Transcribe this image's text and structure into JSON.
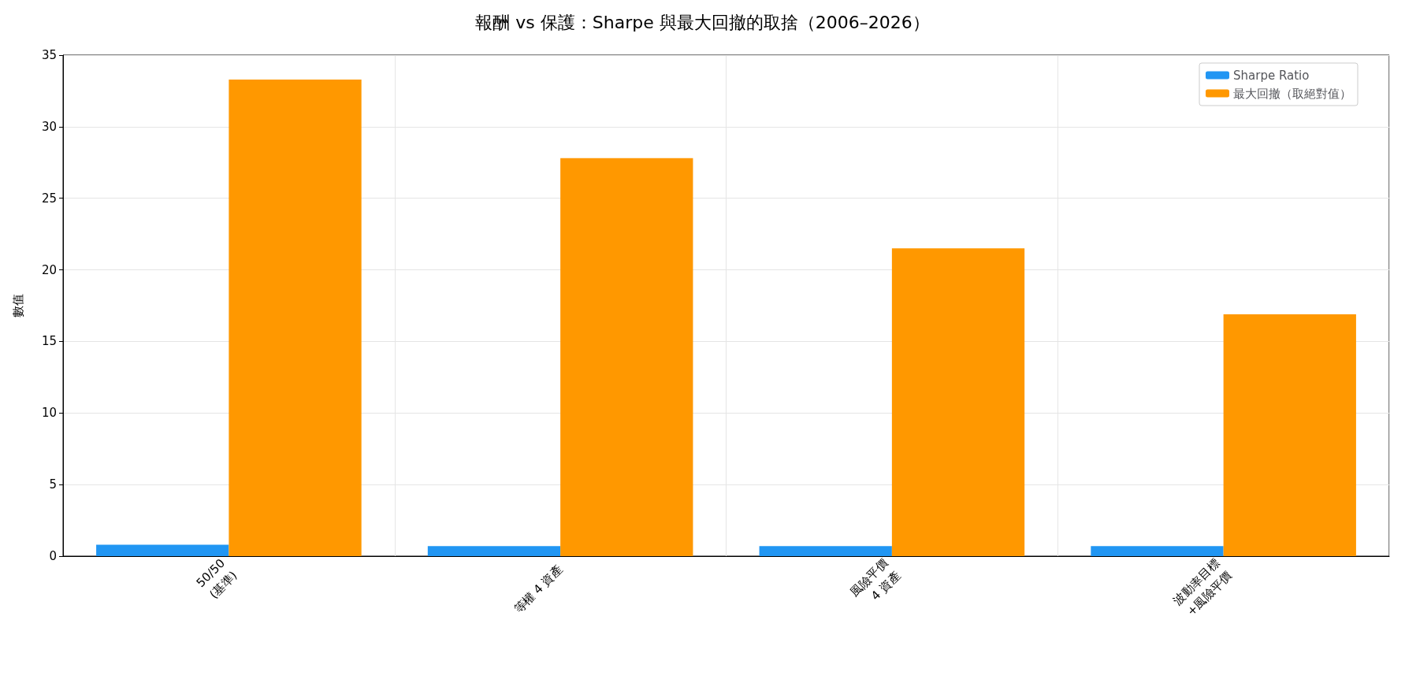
{
  "chart_data": {
    "type": "bar",
    "title": "報酬 vs 保護：Sharpe 與最大回撤的取捨（2006–2026）",
    "ylabel": "數值",
    "categories": [
      "50/50\n(基準)",
      "等權 4 資產",
      "風險平價\n4 資產",
      "波動率目標\n+風險平價"
    ],
    "series": [
      {
        "name": "Sharpe Ratio",
        "color": "#2196f3",
        "values": [
          0.8,
          0.7,
          0.7,
          0.7
        ]
      },
      {
        "name": "最大回撤（取絕對值）",
        "color": "#ff9800",
        "values": [
          33.3,
          27.8,
          21.5,
          16.9
        ]
      }
    ],
    "ylim": [
      0,
      35
    ],
    "yticks": [
      0,
      5,
      10,
      15,
      20,
      25,
      30,
      35
    ],
    "grid": true,
    "legend": "top right"
  }
}
